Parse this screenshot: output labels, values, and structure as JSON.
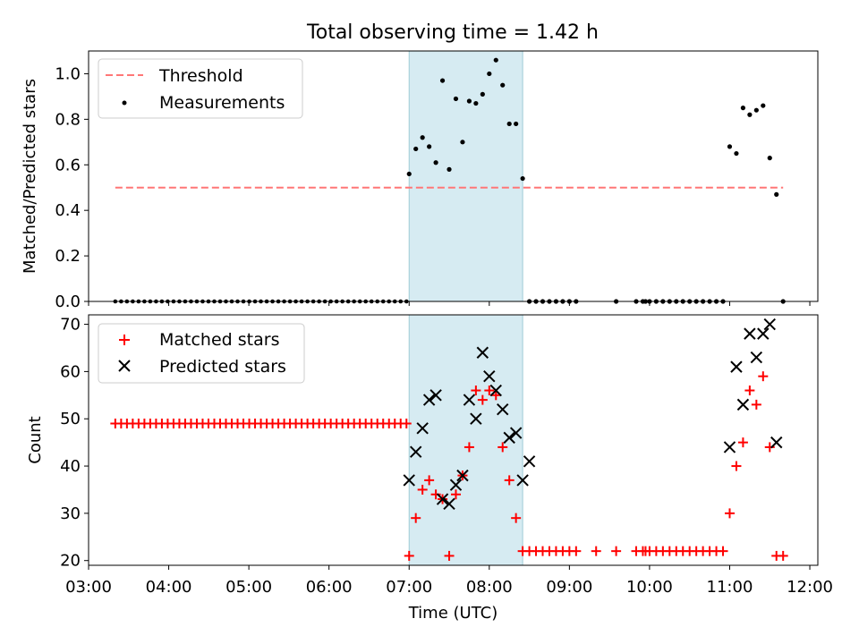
{
  "figure_title": "Total observing time = 1.42 h",
  "chart_data": [
    {
      "type": "scatter",
      "ylabel": "Matched/Predicted stars",
      "xlim": [
        "03:00",
        "12:00"
      ],
      "ylim": [
        0,
        1.1
      ],
      "yticks": [
        "0.0",
        "0.2",
        "0.4",
        "0.6",
        "0.8",
        "1.0"
      ],
      "xticks": [
        "03:00",
        "04:00",
        "05:00",
        "06:00",
        "07:00",
        "08:00",
        "09:00",
        "10:00",
        "11:00",
        "12:00"
      ],
      "shaded_interval": [
        "07:00",
        "08:25"
      ],
      "legend": {
        "position": "upper left",
        "entries": [
          "Threshold",
          "Measurements"
        ]
      },
      "colors": {
        "threshold": "#ff7777",
        "measurements": "#000000",
        "shade": "#add8e6"
      },
      "threshold": {
        "name": "Threshold",
        "y": 0.5,
        "x_range": [
          "03:20",
          "11:40"
        ]
      },
      "series": [
        {
          "name": "Measurements",
          "x_range_zero_run": [
            "03:20",
            "06:58"
          ],
          "zero_points_before": 51,
          "points": [
            [
              "07:00",
              0.56
            ],
            [
              "07:05",
              0.67
            ],
            [
              "07:10",
              0.72
            ],
            [
              "07:15",
              0.68
            ],
            [
              "07:20",
              0.61
            ],
            [
              "07:25",
              0.97
            ],
            [
              "07:30",
              0.58
            ],
            [
              "07:35",
              0.89
            ],
            [
              "07:40",
              0.7
            ],
            [
              "07:45",
              0.88
            ],
            [
              "07:50",
              0.87
            ],
            [
              "07:55",
              0.91
            ],
            [
              "08:00",
              1.0
            ],
            [
              "08:05",
              1.06
            ],
            [
              "08:10",
              0.95
            ],
            [
              "08:15",
              0.78
            ],
            [
              "08:20",
              0.78
            ],
            [
              "08:25",
              0.54
            ],
            [
              "08:30",
              0.0
            ],
            [
              "08:35",
              0.0
            ],
            [
              "08:40",
              0.0
            ],
            [
              "08:45",
              0.0
            ],
            [
              "08:50",
              0.0
            ],
            [
              "08:55",
              0.0
            ],
            [
              "09:00",
              0.0
            ],
            [
              "09:05",
              0.0
            ],
            [
              "09:35",
              0.0
            ],
            [
              "09:50",
              0.0
            ],
            [
              "09:55",
              0.0
            ],
            [
              "09:57",
              0.0
            ],
            [
              "10:00",
              0.0
            ],
            [
              "10:05",
              0.0
            ],
            [
              "10:10",
              0.0
            ],
            [
              "10:15",
              0.0
            ],
            [
              "10:20",
              0.0
            ],
            [
              "10:25",
              0.0
            ],
            [
              "10:30",
              0.0
            ],
            [
              "10:35",
              0.0
            ],
            [
              "10:40",
              0.0
            ],
            [
              "10:45",
              0.0
            ],
            [
              "10:50",
              0.0
            ],
            [
              "10:55",
              0.0
            ],
            [
              "11:00",
              0.68
            ],
            [
              "11:05",
              0.65
            ],
            [
              "11:10",
              0.85
            ],
            [
              "11:15",
              0.82
            ],
            [
              "11:20",
              0.84
            ],
            [
              "11:25",
              0.86
            ],
            [
              "11:30",
              0.63
            ],
            [
              "11:35",
              0.47
            ],
            [
              "11:40",
              0.0
            ]
          ]
        }
      ]
    },
    {
      "type": "scatter",
      "xlabel": "Time (UTC)",
      "ylabel": "Count",
      "xlim": [
        "03:00",
        "12:00"
      ],
      "ylim": [
        19,
        72
      ],
      "yticks": [
        "20",
        "30",
        "40",
        "50",
        "60",
        "70"
      ],
      "xticks": [
        "03:00",
        "04:00",
        "05:00",
        "06:00",
        "07:00",
        "08:00",
        "09:00",
        "10:00",
        "11:00",
        "12:00"
      ],
      "shaded_interval": [
        "07:00",
        "08:25"
      ],
      "legend": {
        "position": "upper left",
        "entries": [
          "Matched stars",
          "Predicted stars"
        ]
      },
      "colors": {
        "matched": "#ff0000",
        "predicted": "#000000",
        "shade": "#add8e6"
      },
      "series": [
        {
          "name": "Matched stars",
          "marker": "+",
          "constant_run": {
            "from": "03:20",
            "to": "06:58",
            "count": 51,
            "y": 49
          },
          "points": [
            [
              "07:00",
              21
            ],
            [
              "07:05",
              29
            ],
            [
              "07:10",
              35
            ],
            [
              "07:15",
              37
            ],
            [
              "07:20",
              34
            ],
            [
              "07:25",
              33
            ],
            [
              "07:30",
              21
            ],
            [
              "07:35",
              34
            ],
            [
              "07:40",
              38
            ],
            [
              "07:45",
              44
            ],
            [
              "07:50",
              56
            ],
            [
              "07:55",
              54
            ],
            [
              "08:00",
              56
            ],
            [
              "08:05",
              55
            ],
            [
              "08:10",
              44
            ],
            [
              "08:15",
              37
            ],
            [
              "08:20",
              29
            ],
            [
              "08:25",
              22
            ],
            [
              "08:30",
              22
            ],
            [
              "08:35",
              22
            ],
            [
              "08:40",
              22
            ],
            [
              "08:45",
              22
            ],
            [
              "08:50",
              22
            ],
            [
              "08:55",
              22
            ],
            [
              "09:00",
              22
            ],
            [
              "09:05",
              22
            ],
            [
              "09:20",
              22
            ],
            [
              "09:35",
              22
            ],
            [
              "09:50",
              22
            ],
            [
              "09:55",
              22
            ],
            [
              "09:57",
              22
            ],
            [
              "10:00",
              22
            ],
            [
              "10:05",
              22
            ],
            [
              "10:10",
              22
            ],
            [
              "10:15",
              22
            ],
            [
              "10:20",
              22
            ],
            [
              "10:25",
              22
            ],
            [
              "10:30",
              22
            ],
            [
              "10:35",
              22
            ],
            [
              "10:40",
              22
            ],
            [
              "10:45",
              22
            ],
            [
              "10:50",
              22
            ],
            [
              "10:55",
              22
            ],
            [
              "11:00",
              30
            ],
            [
              "11:05",
              40
            ],
            [
              "11:10",
              45
            ],
            [
              "11:15",
              56
            ],
            [
              "11:20",
              53
            ],
            [
              "11:25",
              59
            ],
            [
              "11:30",
              44
            ],
            [
              "11:35",
              21
            ],
            [
              "11:40",
              21
            ]
          ]
        },
        {
          "name": "Predicted stars",
          "marker": "x",
          "points": [
            [
              "07:00",
              37
            ],
            [
              "07:05",
              43
            ],
            [
              "07:10",
              48
            ],
            [
              "07:15",
              54
            ],
            [
              "07:20",
              55
            ],
            [
              "07:25",
              33
            ],
            [
              "07:30",
              32
            ],
            [
              "07:35",
              36
            ],
            [
              "07:40",
              38
            ],
            [
              "07:45",
              54
            ],
            [
              "07:50",
              50
            ],
            [
              "07:55",
              64
            ],
            [
              "08:00",
              59
            ],
            [
              "08:05",
              56
            ],
            [
              "08:10",
              52
            ],
            [
              "08:15",
              46
            ],
            [
              "08:20",
              47
            ],
            [
              "08:25",
              37
            ],
            [
              "08:30",
              41
            ],
            [
              "11:00",
              44
            ],
            [
              "11:05",
              61
            ],
            [
              "11:10",
              53
            ],
            [
              "11:15",
              68
            ],
            [
              "11:20",
              63
            ],
            [
              "11:25",
              68
            ],
            [
              "11:30",
              70
            ],
            [
              "11:35",
              45
            ]
          ]
        }
      ]
    }
  ]
}
